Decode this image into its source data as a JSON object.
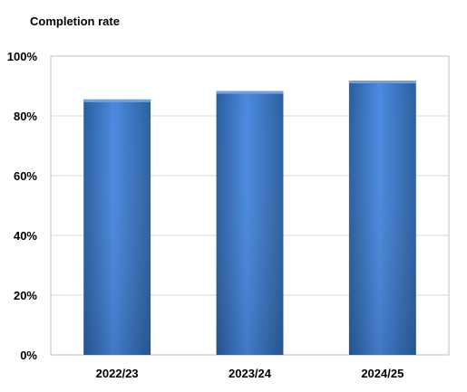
{
  "chart_data": {
    "type": "bar",
    "title": "Completion rate",
    "xlabel": "",
    "ylabel": "",
    "categories": [
      "2022/23",
      "2023/24",
      "2024/25"
    ],
    "values": [
      85.5,
      88.3,
      91.8
    ],
    "ylim": [
      0,
      100
    ],
    "yticks": [
      0,
      20,
      40,
      60,
      80,
      100
    ],
    "ytick_format": "%",
    "grid": true,
    "legend": "none",
    "bar_color": "#3a78c9"
  }
}
